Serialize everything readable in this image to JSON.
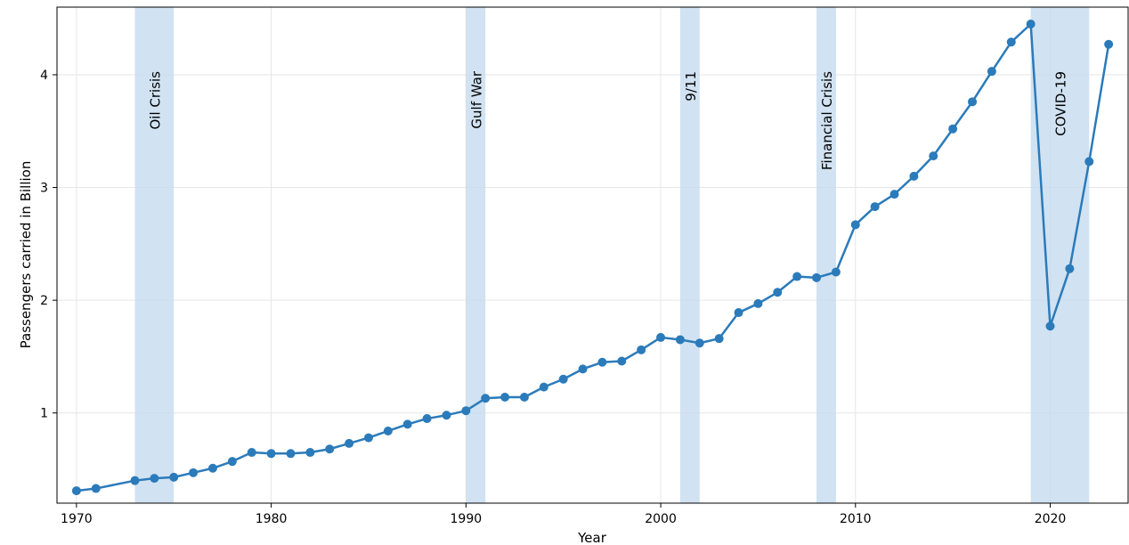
{
  "chart_data": {
    "type": "line",
    "title": "",
    "xlabel": "Year",
    "ylabel": "Passengers carried in Billion",
    "xlim": [
      1969,
      2024
    ],
    "ylim": [
      0.2,
      4.6
    ],
    "x_ticks": [
      "1970",
      "1980",
      "1990",
      "2000",
      "2010",
      "2020"
    ],
    "y_ticks": [
      "1",
      "2",
      "3",
      "4"
    ],
    "grid": true,
    "line_color": "#2b7bba",
    "band_color": "#c6dbef",
    "events": [
      {
        "label": "Oil Crisis",
        "start": 1973,
        "end": 1975
      },
      {
        "label": "Gulf War",
        "start": 1990,
        "end": 1991
      },
      {
        "label": "9/11",
        "start": 2001,
        "end": 2002
      },
      {
        "label": "Financial Crisis",
        "start": 2008,
        "end": 2009
      },
      {
        "label": "COVID-19",
        "start": 2019,
        "end": 2022
      }
    ],
    "x": [
      1970,
      1971,
      1973,
      1974,
      1975,
      1976,
      1977,
      1978,
      1979,
      1980,
      1981,
      1982,
      1983,
      1984,
      1985,
      1986,
      1987,
      1988,
      1989,
      1990,
      1991,
      1992,
      1993,
      1994,
      1995,
      1996,
      1997,
      1998,
      1999,
      2000,
      2001,
      2002,
      2003,
      2004,
      2005,
      2006,
      2007,
      2008,
      2009,
      2010,
      2011,
      2012,
      2013,
      2014,
      2015,
      2016,
      2017,
      2018,
      2019,
      2020,
      2021,
      2022,
      2023
    ],
    "values": [
      0.31,
      0.33,
      0.4,
      0.42,
      0.43,
      0.47,
      0.51,
      0.57,
      0.65,
      0.64,
      0.64,
      0.65,
      0.68,
      0.73,
      0.78,
      0.84,
      0.9,
      0.95,
      0.98,
      1.02,
      1.13,
      1.14,
      1.14,
      1.23,
      1.3,
      1.39,
      1.45,
      1.46,
      1.56,
      1.67,
      1.65,
      1.62,
      1.66,
      1.89,
      1.97,
      2.07,
      2.21,
      2.2,
      2.25,
      2.67,
      2.83,
      2.94,
      3.1,
      3.28,
      3.52,
      3.76,
      4.03,
      4.29,
      4.45,
      1.77,
      2.28,
      3.23,
      4.27
    ]
  }
}
